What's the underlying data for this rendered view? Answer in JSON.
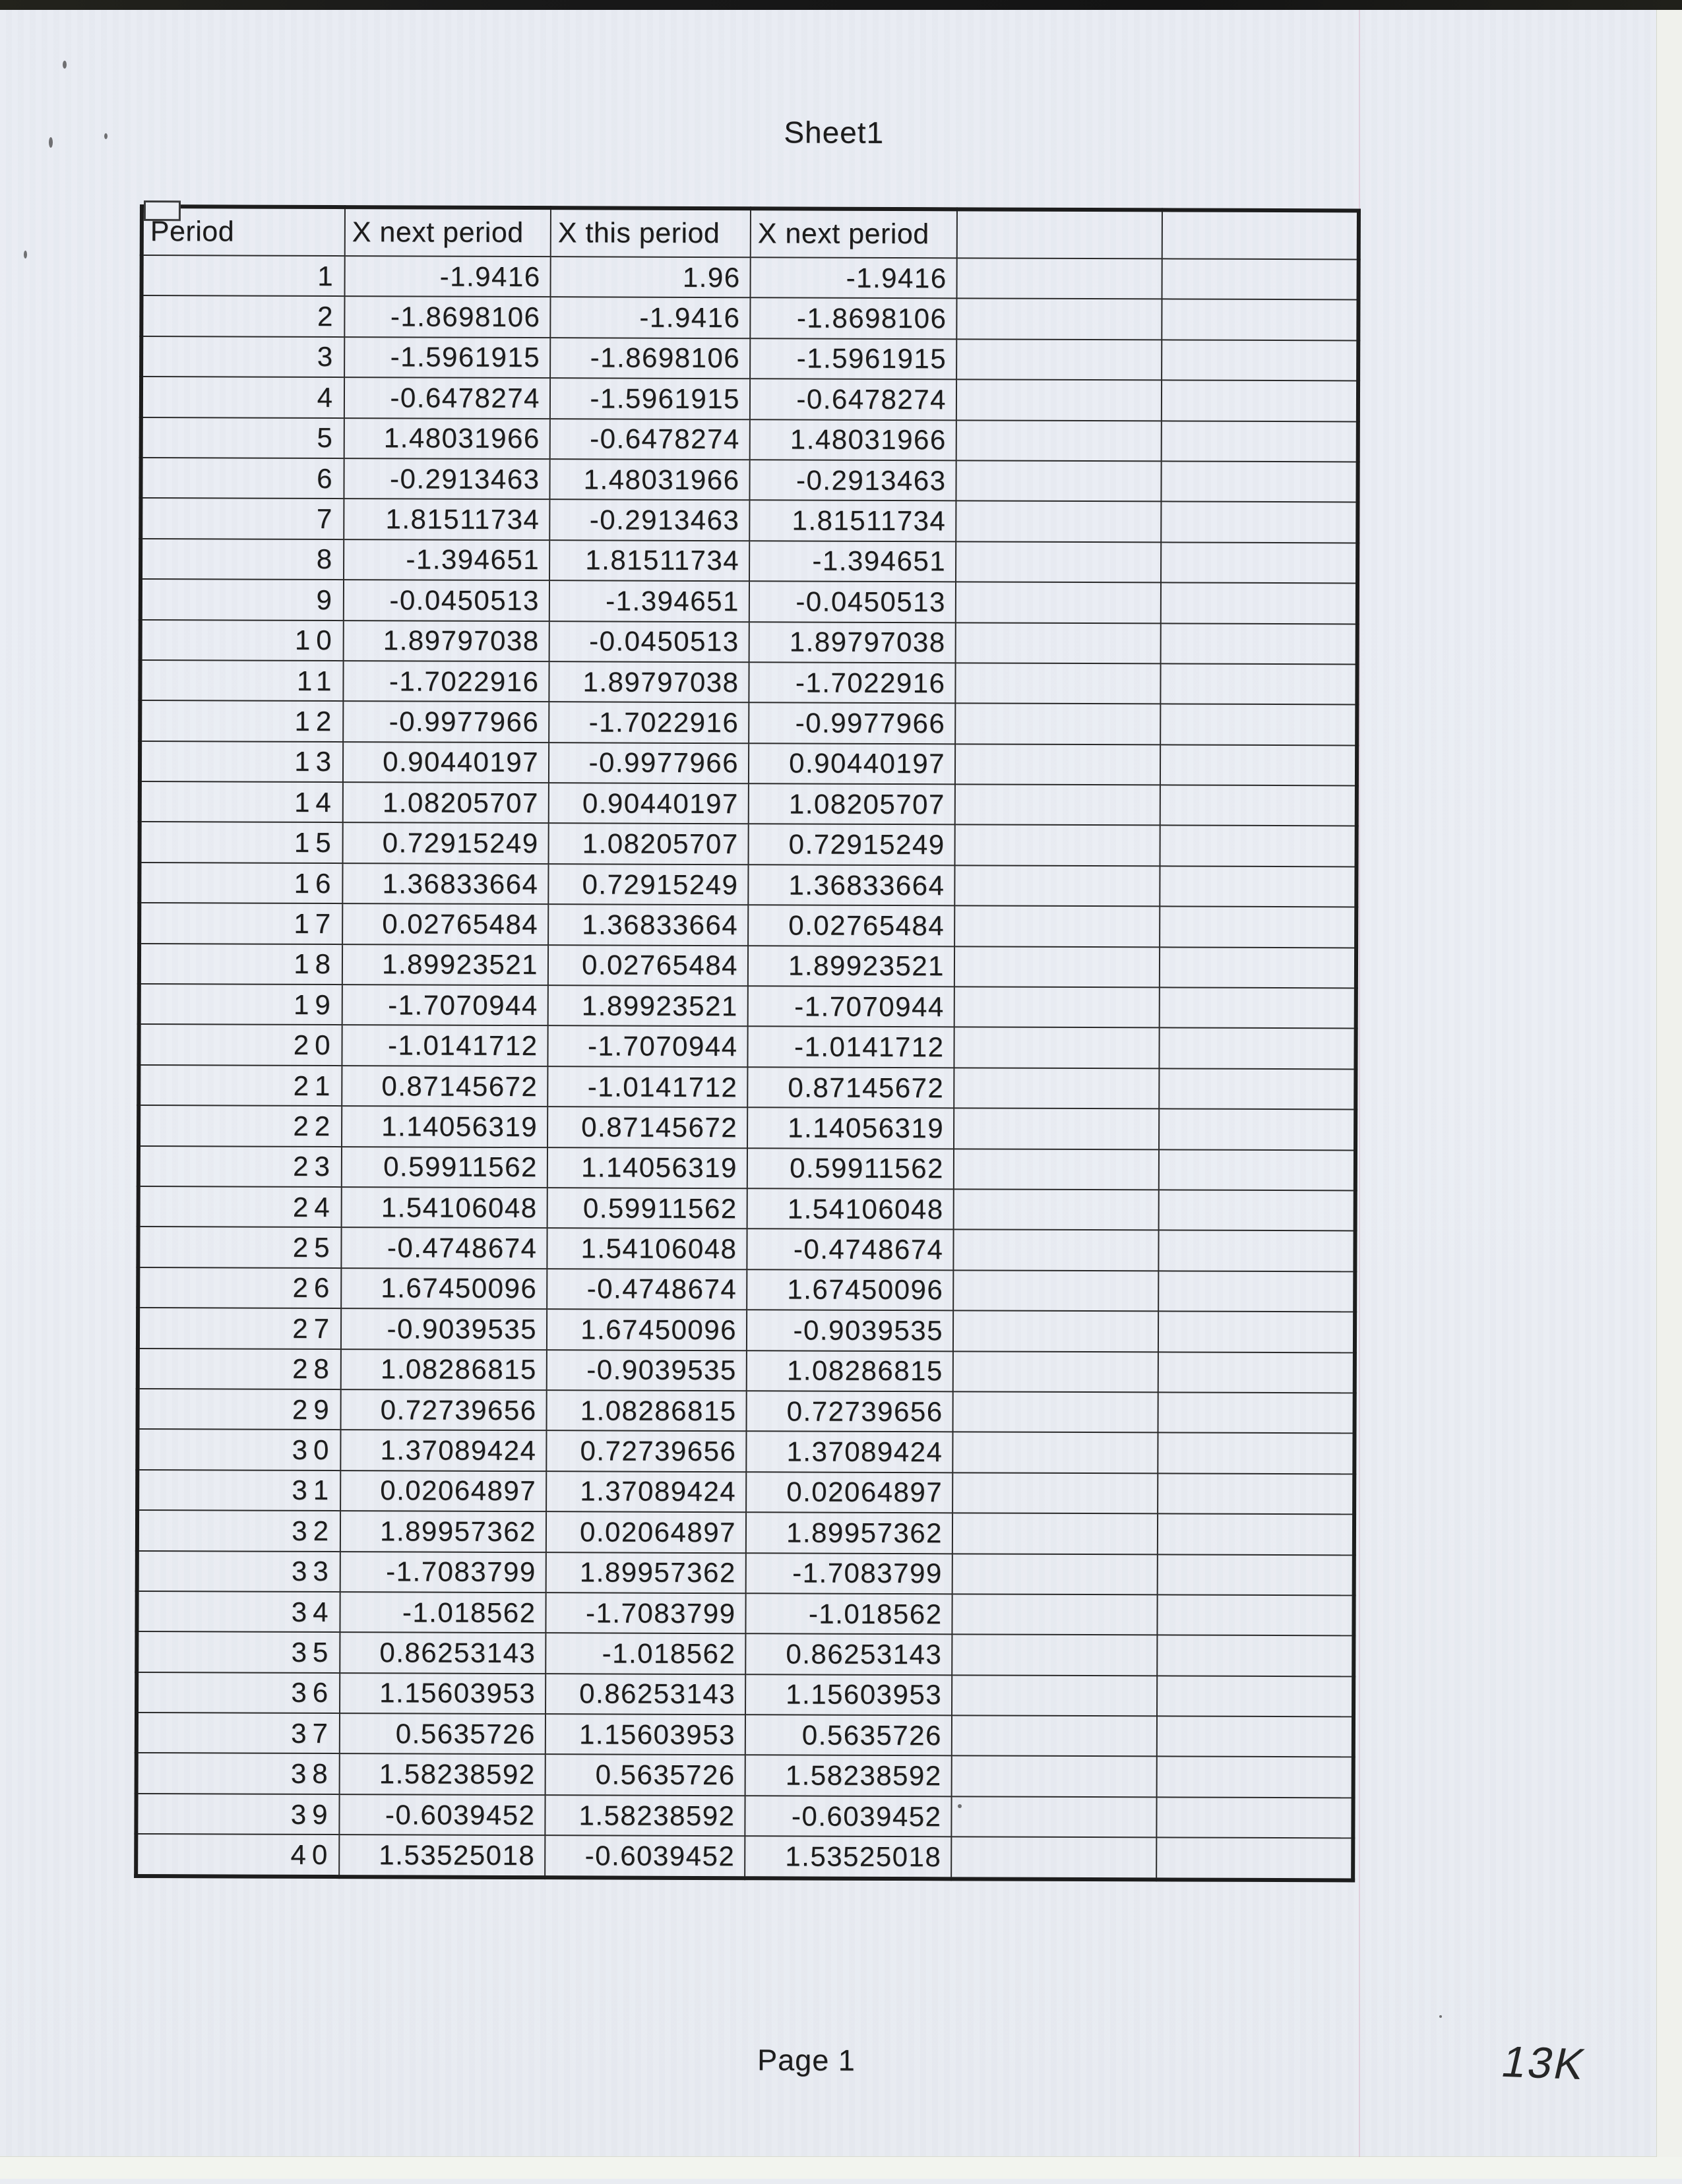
{
  "page": {
    "sheet_title": "Sheet1",
    "page_footer": "Page 1",
    "handwritten_note": "13K"
  },
  "colors": {
    "paper": "#e9ecf2",
    "ink": "#1c1c1c",
    "scanner_band": "#161616",
    "crease_line": "#d6a4ba"
  },
  "table": {
    "columns": [
      "Period",
      "X next period",
      "X this period",
      "X next period",
      "",
      ""
    ],
    "rows": [
      [
        "1",
        "-1.9416",
        "1.96",
        "-1.9416"
      ],
      [
        "2",
        "-1.8698106",
        "-1.9416",
        "-1.8698106"
      ],
      [
        "3",
        "-1.5961915",
        "-1.8698106",
        "-1.5961915"
      ],
      [
        "4",
        "-0.6478274",
        "-1.5961915",
        "-0.6478274"
      ],
      [
        "5",
        "1.48031966",
        "-0.6478274",
        "1.48031966"
      ],
      [
        "6",
        "-0.2913463",
        "1.48031966",
        "-0.2913463"
      ],
      [
        "7",
        "1.81511734",
        "-0.2913463",
        "1.81511734"
      ],
      [
        "8",
        "-1.394651",
        "1.81511734",
        "-1.394651"
      ],
      [
        "9",
        "-0.0450513",
        "-1.394651",
        "-0.0450513"
      ],
      [
        "10",
        "1.89797038",
        "-0.0450513",
        "1.89797038"
      ],
      [
        "11",
        "-1.7022916",
        "1.89797038",
        "-1.7022916"
      ],
      [
        "12",
        "-0.9977966",
        "-1.7022916",
        "-0.9977966"
      ],
      [
        "13",
        "0.90440197",
        "-0.9977966",
        "0.90440197"
      ],
      [
        "14",
        "1.08205707",
        "0.90440197",
        "1.08205707"
      ],
      [
        "15",
        "0.72915249",
        "1.08205707",
        "0.72915249"
      ],
      [
        "16",
        "1.36833664",
        "0.72915249",
        "1.36833664"
      ],
      [
        "17",
        "0.02765484",
        "1.36833664",
        "0.02765484"
      ],
      [
        "18",
        "1.89923521",
        "0.02765484",
        "1.89923521"
      ],
      [
        "19",
        "-1.7070944",
        "1.89923521",
        "-1.7070944"
      ],
      [
        "20",
        "-1.0141712",
        "-1.7070944",
        "-1.0141712"
      ],
      [
        "21",
        "0.87145672",
        "-1.0141712",
        "0.87145672"
      ],
      [
        "22",
        "1.14056319",
        "0.87145672",
        "1.14056319"
      ],
      [
        "23",
        "0.59911562",
        "1.14056319",
        "0.59911562"
      ],
      [
        "24",
        "1.54106048",
        "0.59911562",
        "1.54106048"
      ],
      [
        "25",
        "-0.4748674",
        "1.54106048",
        "-0.4748674"
      ],
      [
        "26",
        "1.67450096",
        "-0.4748674",
        "1.67450096"
      ],
      [
        "27",
        "-0.9039535",
        "1.67450096",
        "-0.9039535"
      ],
      [
        "28",
        "1.08286815",
        "-0.9039535",
        "1.08286815"
      ],
      [
        "29",
        "0.72739656",
        "1.08286815",
        "0.72739656"
      ],
      [
        "30",
        "1.37089424",
        "0.72739656",
        "1.37089424"
      ],
      [
        "31",
        "0.02064897",
        "1.37089424",
        "0.02064897"
      ],
      [
        "32",
        "1.89957362",
        "0.02064897",
        "1.89957362"
      ],
      [
        "33",
        "-1.7083799",
        "1.89957362",
        "-1.7083799"
      ],
      [
        "34",
        "-1.018562",
        "-1.7083799",
        "-1.018562"
      ],
      [
        "35",
        "0.86253143",
        "-1.018562",
        "0.86253143"
      ],
      [
        "36",
        "1.15603953",
        "0.86253143",
        "1.15603953"
      ],
      [
        "37",
        "0.5635726",
        "1.15603953",
        "0.5635726"
      ],
      [
        "38",
        "1.58238592",
        "0.5635726",
        "1.58238592"
      ],
      [
        "39",
        "-0.6039452",
        "1.58238592",
        "-0.6039452"
      ],
      [
        "40",
        "1.53525018",
        "-0.6039452",
        "1.53525018"
      ]
    ]
  }
}
